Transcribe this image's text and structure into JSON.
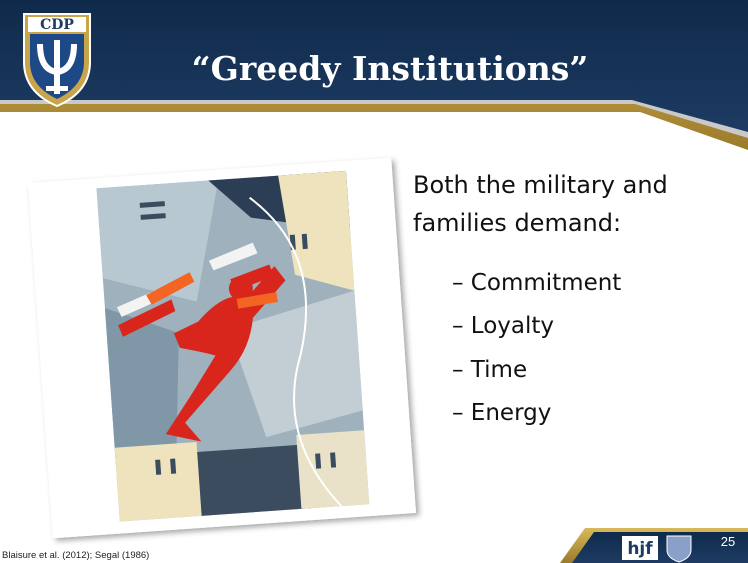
{
  "header": {
    "logo_text": "CDP",
    "title": "“Greedy Institutions”"
  },
  "body": {
    "intro_lines": [
      "Both the military and",
      "families demand:"
    ],
    "bullets": [
      "– Commitment",
      "– Loyalty",
      "– Time",
      "– Energy"
    ]
  },
  "footer": {
    "citation": "Blaisure et al. (2012); Segal (1986)",
    "brand": "hjf",
    "page_number": 25
  }
}
